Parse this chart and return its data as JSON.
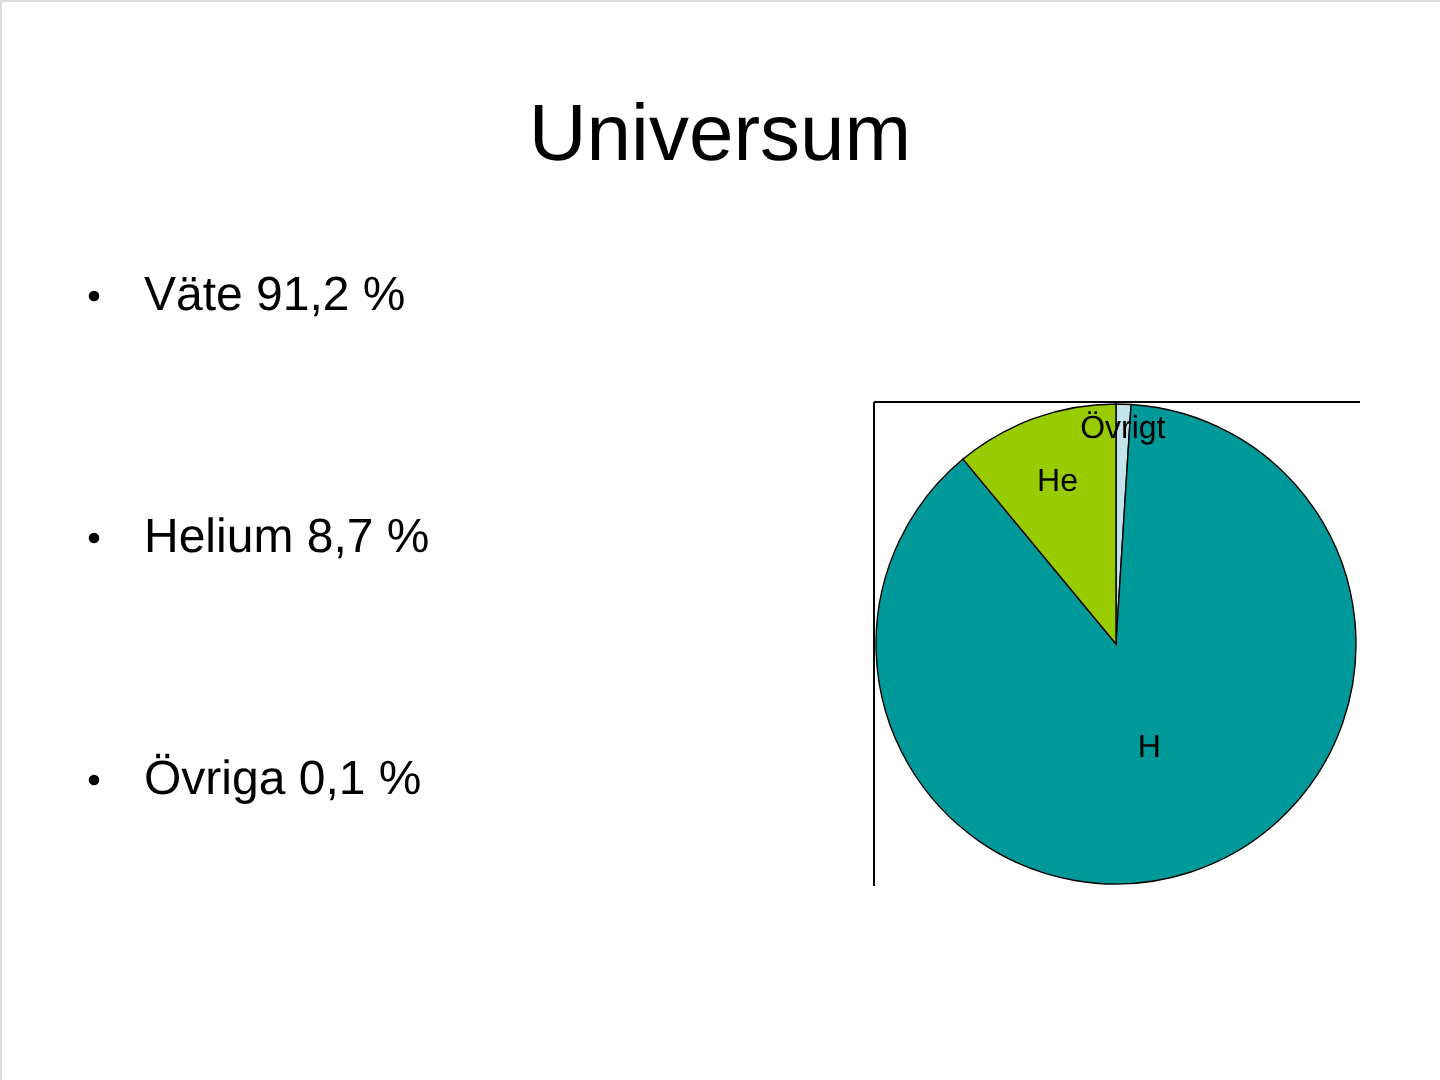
{
  "chart_data": {
    "type": "pie",
    "title": "Universum",
    "categories": [
      "Övrigt",
      "H",
      "He"
    ],
    "values": [
      1,
      88,
      11
    ],
    "colors": [
      "#c4e4ec",
      "#009999",
      "#99cc00"
    ],
    "annotations": [
      "Väte 91,2 %",
      "Helium 8,7 %",
      "Övriga 0,1 %"
    ]
  }
}
